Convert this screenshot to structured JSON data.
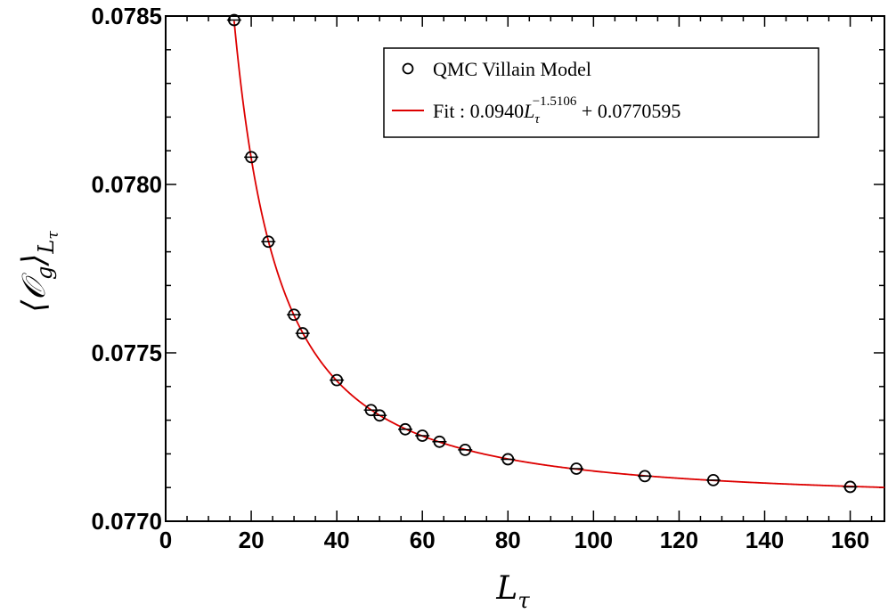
{
  "chart_data": {
    "type": "scatter",
    "title": "",
    "xlabel": "L_τ",
    "ylabel": "⟨𝒪_g⟩_{L_τ}",
    "xlim": [
      0,
      168
    ],
    "ylim": [
      0.077,
      0.0785
    ],
    "x_ticks": [
      0,
      20,
      40,
      60,
      80,
      100,
      120,
      140,
      160
    ],
    "x_tick_labels": [
      "0",
      "20",
      "40",
      "60",
      "80",
      "100",
      "120",
      "140",
      "160"
    ],
    "y_ticks": [
      0.077,
      0.0775,
      0.078,
      0.0785
    ],
    "y_tick_labels": [
      "0.0770",
      "0.0775",
      "0.0780",
      "0.0785"
    ],
    "grid": false,
    "legend_position": "top-right",
    "series": [
      {
        "name": "QMC Villain Model",
        "kind": "markers",
        "color": "#000000",
        "x": [
          16,
          20,
          24,
          30,
          32,
          40,
          48,
          50,
          56,
          60,
          64,
          70,
          80,
          96,
          112,
          128,
          160
        ],
        "y": [
          0.078488,
          0.078081,
          0.07783,
          0.077613,
          0.077558,
          0.077419,
          0.07733,
          0.077314,
          0.077273,
          0.077254,
          0.077236,
          0.077212,
          0.077184,
          0.077156,
          0.077134,
          0.077122,
          0.077102
        ]
      },
      {
        "name": "Fit : 0.0940L_τ^{-1.5106} + 0.0770595",
        "kind": "line",
        "color": "#dd0000",
        "function": {
          "a": 0.094,
          "b": -1.5106,
          "c": 0.0770595
        },
        "x_range": [
          16,
          168
        ]
      }
    ]
  },
  "legend": {
    "items": [
      {
        "label": "QMC Villain Model"
      },
      {
        "label_prefix": "Fit : 0.0940",
        "label_L": "L",
        "label_sub": "τ",
        "label_sup": "−1.5106",
        "label_suffix": " + 0.0770595"
      }
    ]
  },
  "axis_labels": {
    "x_main": "L",
    "x_sub": "τ",
    "y_left": "⟨",
    "y_O": "𝒪",
    "y_Osub": "g",
    "y_right": "⟩",
    "y_sub": "L",
    "y_subsub": "τ"
  }
}
